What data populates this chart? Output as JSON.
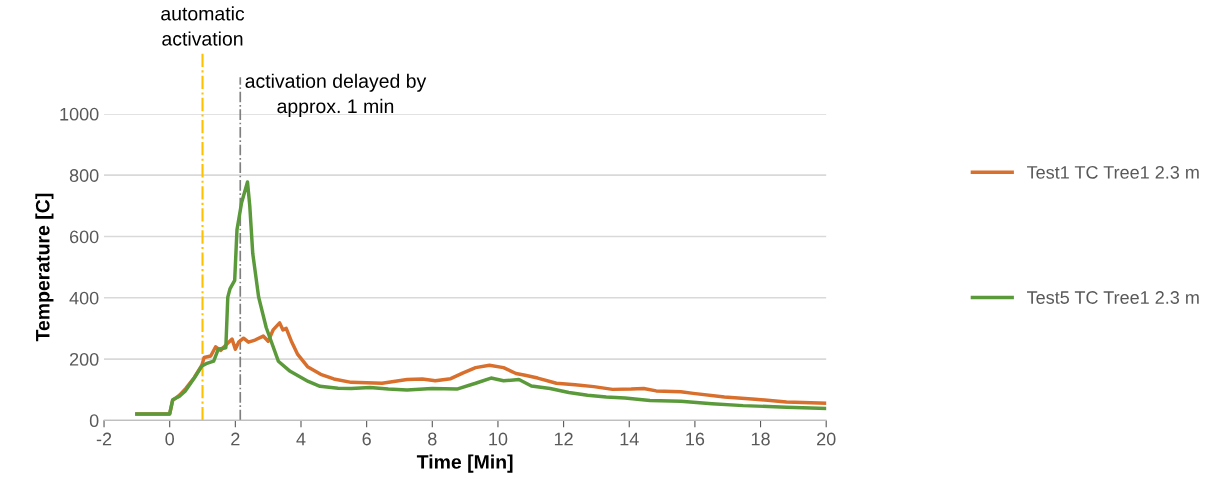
{
  "chart_data": {
    "type": "line",
    "xlabel": "Time [Min]",
    "ylabel": "Temperature [C]",
    "xlim": [
      -2,
      20
    ],
    "xticks": [
      -2,
      0,
      2,
      4,
      6,
      8,
      10,
      12,
      14,
      16,
      18,
      20
    ],
    "ylim": [
      0,
      1000
    ],
    "yticks": [
      0,
      200,
      400,
      600,
      800,
      1000
    ],
    "grid": "y",
    "legend": "right",
    "marker": "none",
    "line_style": "solid",
    "ref_lines": [
      {
        "axis": "x",
        "value": 1.0,
        "label": "automatic activation",
        "color": "#ffc000",
        "line_style": "dashdot"
      },
      {
        "axis": "x",
        "value": 2.15,
        "label": "activation delayed by approx. 1 min",
        "color": "#7f7f7f",
        "line_style": "dashdot"
      }
    ],
    "series": [
      {
        "name": "Test1 TC Tree1 2.3 m",
        "color": "#d86f2c",
        "x": [
          -1,
          0,
          0.09,
          0.3,
          0.5,
          0.75,
          0.98,
          1.05,
          1.25,
          1.4,
          1.55,
          1.75,
          1.9,
          2.0,
          2.1,
          2.25,
          2.4,
          2.6,
          2.85,
          3.0,
          3.15,
          3.35,
          3.45,
          3.55,
          3.7,
          3.9,
          4.2,
          4.6,
          5.0,
          5.53,
          6.47,
          7.23,
          7.7,
          8.09,
          8.56,
          8.94,
          9.32,
          9.74,
          10.17,
          10.55,
          10.83,
          11.21,
          11.78,
          12.35,
          12.92,
          13.49,
          14.06,
          14.44,
          14.82,
          15.57,
          15.95,
          16.9,
          17.84,
          18.79,
          20
        ],
        "values": [
          21,
          21,
          65,
          82,
          105,
          140,
          180,
          205,
          210,
          240,
          228,
          250,
          265,
          232,
          255,
          268,
          255,
          262,
          275,
          258,
          295,
          318,
          295,
          300,
          260,
          215,
          175,
          150,
          135,
          124,
          121,
          133,
          135,
          129,
          136,
          155,
          172,
          180,
          172,
          153,
          147,
          138,
          121,
          116,
          110,
          101,
          102,
          104,
          96,
          93,
          88,
          76,
          69,
          60,
          56
        ]
      },
      {
        "name": "Test5 TC Tree1 2.3 m",
        "color": "#5b9a3a",
        "x": [
          -1,
          0,
          0.09,
          0.29,
          0.47,
          0.75,
          0.98,
          1.11,
          1.34,
          1.48,
          1.71,
          1.77,
          1.84,
          1.98,
          2.05,
          2.19,
          2.37,
          2.44,
          2.53,
          2.71,
          2.94,
          3.31,
          3.67,
          4.22,
          4.58,
          5.13,
          5.53,
          6.1,
          6.66,
          7.23,
          7.99,
          8.75,
          9.32,
          9.79,
          10.17,
          10.64,
          11.02,
          11.59,
          12.16,
          12.73,
          13.3,
          13.87,
          14.63,
          15.57,
          16.52,
          17.47,
          18.79,
          20
        ],
        "values": [
          21,
          21,
          67,
          78,
          95,
          138,
          177,
          185,
          193,
          232,
          237,
          402,
          430,
          457,
          622,
          710,
          778,
          699,
          545,
          402,
          303,
          193,
          160,
          127,
          111,
          105,
          104,
          107,
          102,
          99,
          104,
          102,
          121,
          138,
          129,
          133,
          112,
          104,
          91,
          82,
          76,
          73,
          65,
          62,
          54,
          48,
          43,
          39
        ]
      }
    ]
  }
}
